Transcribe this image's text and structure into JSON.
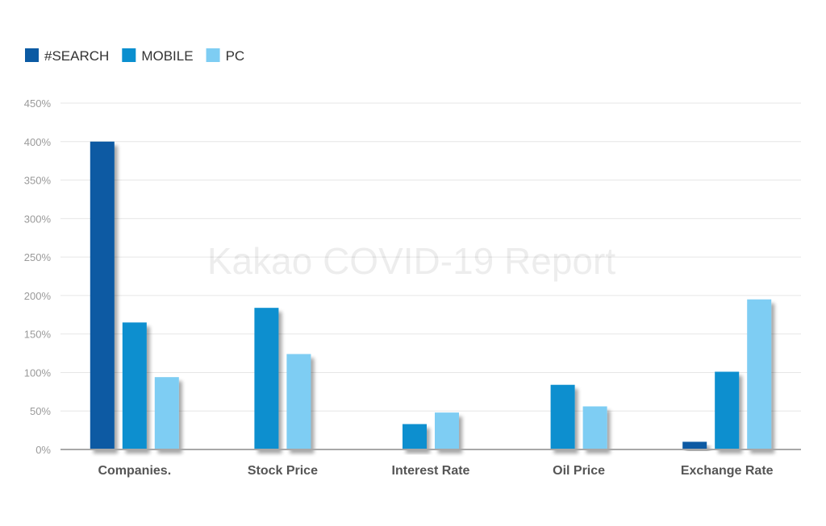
{
  "watermark": "Kakao COVID-19 Report",
  "chart_data": {
    "type": "bar",
    "categories": [
      "Companies.",
      "Stock Price",
      "Interest Rate",
      "Oil Price",
      "Exchange Rate"
    ],
    "series": [
      {
        "name": "#SEARCH",
        "color": "#0b5aa3",
        "values": [
          400,
          null,
          null,
          null,
          10
        ]
      },
      {
        "name": "MOBILE",
        "color": "#0a8fcf",
        "values": [
          165,
          184,
          33,
          84,
          101
        ]
      },
      {
        "name": "PC",
        "color": "#7ecdf3",
        "values": [
          94,
          124,
          48,
          56,
          195
        ]
      }
    ],
    "ylim": [
      0,
      450
    ],
    "yticks": [
      0,
      50,
      100,
      150,
      200,
      250,
      300,
      350,
      400,
      450
    ],
    "ytick_format": "%",
    "grid": true,
    "legend": "top-left"
  }
}
